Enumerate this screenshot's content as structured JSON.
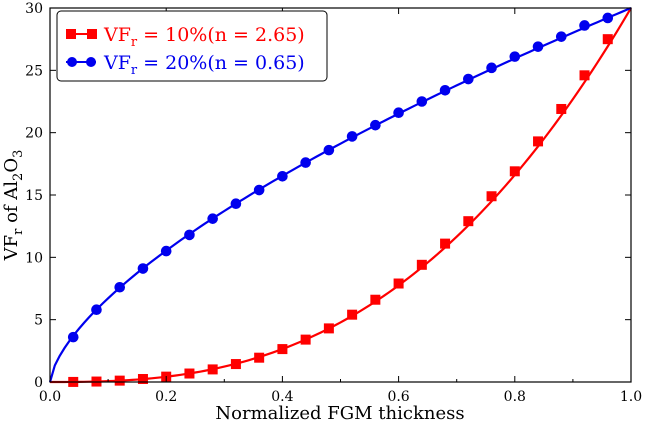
{
  "chart_data": {
    "type": "line",
    "title": "",
    "xlabel": "Normalized FGM thickness",
    "ylabel": {
      "main": "VF",
      "sub1": "r",
      "mid": " of Al",
      "sub2": "2",
      "rest": "O",
      "sub3": "3"
    },
    "xlim": [
      0.0,
      1.0
    ],
    "ylim": [
      0,
      30
    ],
    "xticks": [
      0.0,
      0.2,
      0.4,
      0.6,
      0.8,
      1.0
    ],
    "xtick_labels": [
      "0.0",
      "0.2",
      "0.4",
      "0.6",
      "0.8",
      "1.0"
    ],
    "yticks": [
      0,
      5,
      10,
      15,
      20,
      25,
      30
    ],
    "ytick_labels": [
      "0",
      "5",
      "10",
      "15",
      "20",
      "25",
      "30"
    ],
    "legend_position": "top-left",
    "series": [
      {
        "name": "VFr = 10%(n = 2.65)",
        "label": {
          "main": "VF",
          "sub": "r",
          "rest": " = 10%(n = 2.65)"
        },
        "color": "#ff0000",
        "marker": "square",
        "exponent": 2.65,
        "scale": 30,
        "x": [
          0.04,
          0.08,
          0.12,
          0.16,
          0.2,
          0.24,
          0.28,
          0.32,
          0.36,
          0.4,
          0.44,
          0.48,
          0.52,
          0.56,
          0.6,
          0.64,
          0.68,
          0.72,
          0.76,
          0.8,
          0.84,
          0.88,
          0.92,
          0.96
        ],
        "values": [
          0.006,
          0.036,
          0.11,
          0.24,
          0.43,
          0.68,
          1.01,
          1.44,
          1.95,
          2.64,
          3.4,
          4.3,
          5.4,
          6.6,
          7.9,
          9.4,
          11.1,
          12.9,
          14.9,
          16.9,
          19.3,
          21.9,
          24.6,
          27.5
        ]
      },
      {
        "name": "VFr = 20%(n = 0.65)",
        "label": {
          "main": "VF",
          "sub": "r",
          "rest": " = 20%(n = 0.65)"
        },
        "color": "#0000ee",
        "marker": "circle",
        "exponent": 0.65,
        "scale": 30,
        "x": [
          0.04,
          0.08,
          0.12,
          0.16,
          0.2,
          0.24,
          0.28,
          0.32,
          0.36,
          0.4,
          0.44,
          0.48,
          0.52,
          0.56,
          0.6,
          0.64,
          0.68,
          0.72,
          0.76,
          0.8,
          0.84,
          0.88,
          0.92,
          0.96
        ],
        "values": [
          3.6,
          5.8,
          7.6,
          9.1,
          10.5,
          11.8,
          13.1,
          14.3,
          15.4,
          16.5,
          17.6,
          18.6,
          19.7,
          20.6,
          21.6,
          22.5,
          23.4,
          24.3,
          25.2,
          26.1,
          26.9,
          27.7,
          28.6,
          29.2
        ]
      }
    ]
  }
}
